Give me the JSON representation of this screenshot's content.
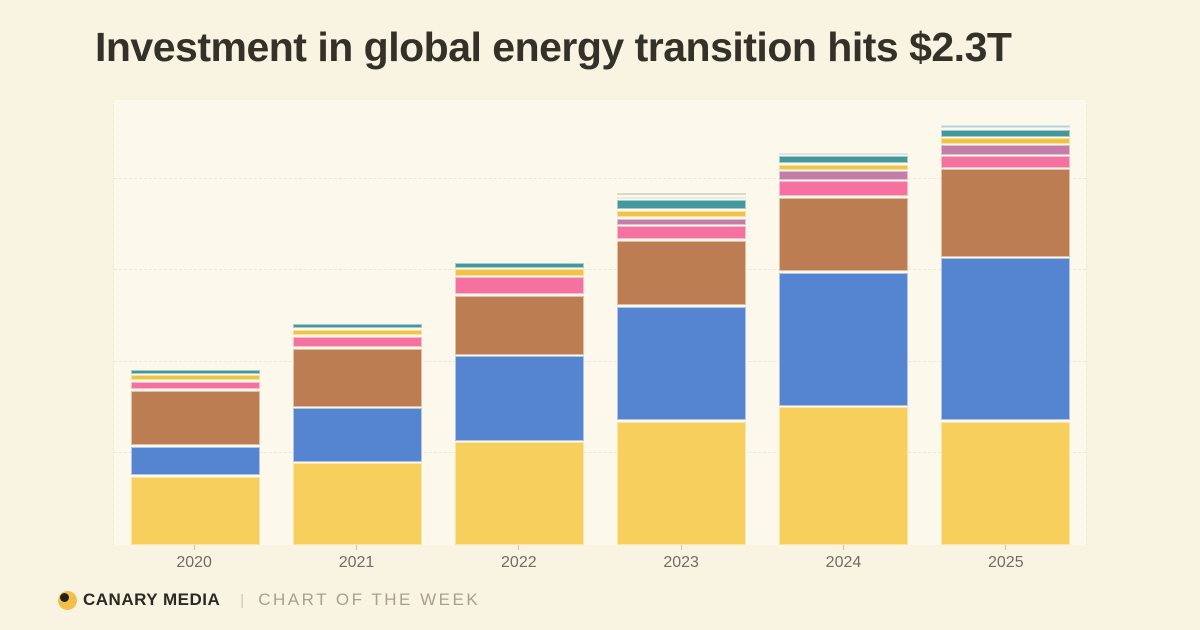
{
  "title": "Investment in global energy transition hits $2.3T",
  "footer": {
    "brand": "CANARY MEDIA",
    "divider": "|",
    "series_label": "CHART OF THE WEEK"
  },
  "colors": {
    "page_background": "#f9f4e2",
    "plot_background": "#fcf9ec",
    "title_text": "#343129",
    "axis_label_text": "#706d65",
    "gridline": "#efe9d4",
    "footer_brand_text": "#2b2923",
    "footer_label_text": "#a7a092",
    "logo_circle": "#f2c04a",
    "logo_dot": "#23211c"
  },
  "chart_data": {
    "type": "bar",
    "stacked": true,
    "title": "Investment in global energy transition hits $2.3T",
    "xlabel": "",
    "ylabel": "",
    "unit_note": "values estimated in $ billions from bar heights; 2025 total = 2300 ($2.3T)",
    "categories": [
      "2020",
      "2021",
      "2022",
      "2023",
      "2024",
      "2025"
    ],
    "series": [
      {
        "name": "yellow-segment",
        "color": "#f6cf5c",
        "values": [
          380,
          455,
          570,
          680,
          760,
          680
        ]
      },
      {
        "name": "blue-segment",
        "color": "#5585d0",
        "values": [
          165,
          300,
          470,
          630,
          735,
          895
        ]
      },
      {
        "name": "brown-segment",
        "color": "#bd7d53",
        "values": [
          305,
          325,
          330,
          360,
          410,
          485
        ]
      },
      {
        "name": "pink-segment",
        "color": "#f5719f",
        "values": [
          50,
          65,
          100,
          80,
          90,
          70
        ]
      },
      {
        "name": "mauve-segment",
        "color": "#c47ca9",
        "values": [
          0,
          0,
          0,
          40,
          55,
          60
        ]
      },
      {
        "name": "gold-segment",
        "color": "#f0c344",
        "values": [
          35,
          40,
          45,
          45,
          35,
          40
        ]
      },
      {
        "name": "teal-segment",
        "color": "#42989e",
        "values": [
          30,
          30,
          35,
          55,
          45,
          45
        ]
      },
      {
        "name": "mint-segment",
        "color": "#cfe0c3",
        "values": [
          0,
          0,
          0,
          15,
          0,
          0
        ]
      },
      {
        "name": "gray-segment",
        "color": "#b3aea2",
        "values": [
          0,
          0,
          0,
          10,
          0,
          0
        ]
      },
      {
        "name": "lightblue-segment",
        "color": "#aed3de",
        "values": [
          0,
          0,
          0,
          0,
          15,
          25
        ]
      }
    ],
    "totals_approx": [
      965,
      1215,
      1550,
      1915,
      2145,
      2300
    ],
    "ylim": [
      0,
      2430
    ],
    "gridlines": [
      500,
      1000,
      1500,
      2000
    ],
    "grid": "faint dashed horizontal",
    "legend": "none"
  }
}
